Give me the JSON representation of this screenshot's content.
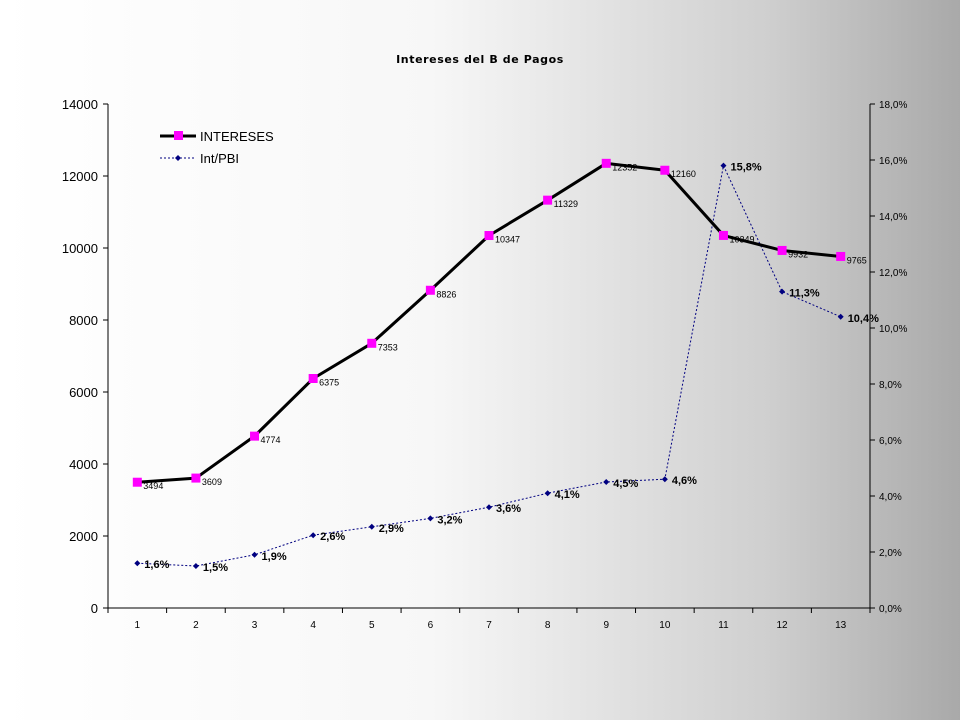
{
  "chart_data": {
    "type": "line",
    "title": "Intereses del B de Pagos",
    "categories": [
      "1",
      "2",
      "3",
      "4",
      "5",
      "6",
      "7",
      "8",
      "9",
      "10",
      "11",
      "12",
      "13"
    ],
    "y_axis_left": {
      "range": [
        0,
        14000
      ],
      "ticks": [
        "0",
        "2000",
        "4000",
        "6000",
        "8000",
        "10000",
        "12000",
        "14000"
      ]
    },
    "y_axis_right": {
      "range": [
        0.0,
        18.0
      ],
      "unit": "%",
      "ticks": [
        "0,0%",
        "2,0%",
        "4,0%",
        "6,0%",
        "8,0%",
        "10,0%",
        "12,0%",
        "14,0%",
        "16,0%",
        "18,0%"
      ]
    },
    "grid": false,
    "legend": "top-left",
    "series": [
      {
        "name": "INTERESES",
        "axis": "left",
        "values": [
          3494,
          3609,
          4774,
          6375,
          7353,
          8826,
          10347,
          11329,
          12352,
          12160,
          10349,
          9932,
          9765
        ],
        "labels": [
          "3494",
          "3609",
          "4774",
          "6375",
          "7353",
          "8826",
          "10347",
          "11329",
          "12352",
          "12160",
          "10349",
          "9932",
          "9765"
        ],
        "color": "#000000",
        "marker_color": "#ff00ff"
      },
      {
        "name": "Int/PBI",
        "axis": "right",
        "values": [
          1.6,
          1.5,
          1.9,
          2.6,
          2.9,
          3.2,
          3.6,
          4.1,
          4.5,
          4.6,
          15.8,
          11.3,
          10.4
        ],
        "labels": [
          "1,6%",
          "1,5%",
          "1,9%",
          "2,6%",
          "2,9%",
          "3,2%",
          "3,6%",
          "4,1%",
          "4,5%",
          "4,6%",
          "15,8%",
          "11,3%",
          "10,4%"
        ],
        "color": "#000080"
      }
    ]
  }
}
